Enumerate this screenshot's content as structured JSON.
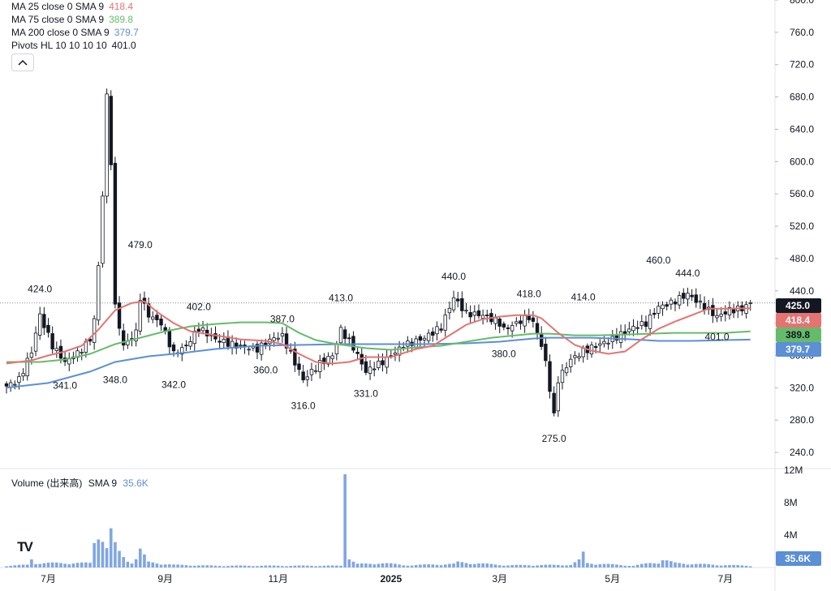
{
  "legend": {
    "ma25": {
      "label": "MA 25 close 0 SMA 9",
      "value": "418.4",
      "color": "#e57373"
    },
    "ma75": {
      "label": "MA 75 close 0 SMA 9",
      "value": "389.8",
      "color": "#66bb6a"
    },
    "ma200": {
      "label": "MA 200 close 0 SMA 9",
      "value": "379.7",
      "color": "#5b8fd6"
    },
    "pivots": {
      "label": "Pivots HL 10 10 10 10",
      "value": "401.0"
    }
  },
  "volume_legend": {
    "label": "Volume (出来高)",
    "sma": "SMA 9",
    "value": "35.6K"
  },
  "logo_text": "TV",
  "chart_data": {
    "type": "candlestick",
    "price_axis": {
      "ticks": [
        "800.0",
        "760.0",
        "720.0",
        "680.0",
        "640.0",
        "600.0",
        "560.0",
        "520.0",
        "480.0",
        "440.0",
        "400.0",
        "360.0",
        "320.0",
        "280.0",
        "240.0"
      ],
      "range": [
        220,
        800
      ]
    },
    "volume_axis": {
      "ticks": [
        "12M",
        "8M",
        "4M"
      ],
      "range": [
        0,
        12000000
      ]
    },
    "time_axis": [
      "7月",
      "9月",
      "11月",
      "2025",
      "3月",
      "5月",
      "7月"
    ],
    "price_badges": [
      {
        "value": "425.0",
        "color": "#131722",
        "price": 425
      },
      {
        "value": "418.4",
        "color": "#e57373",
        "price": 418.4
      },
      {
        "value": "389.8",
        "color": "#66bb6a",
        "price": 389.8
      },
      {
        "value": "379.7",
        "color": "#5b8fd6",
        "price": 379.7
      }
    ],
    "volume_badge": {
      "value": "35.6K",
      "color": "#5b8fd6"
    },
    "last_price": 425,
    "pivot_labels": [
      {
        "text": "424.0",
        "kind": "high",
        "index": 8,
        "price": 424
      },
      {
        "text": "341.0",
        "kind": "low",
        "index": 14,
        "price": 341
      },
      {
        "text": "479.0",
        "kind": "high",
        "index": 32,
        "price": 479
      },
      {
        "text": "348.0",
        "kind": "low",
        "index": 26,
        "price": 348
      },
      {
        "text": "402.0",
        "kind": "high",
        "index": 46,
        "price": 402
      },
      {
        "text": "342.0",
        "kind": "low",
        "index": 40,
        "price": 342
      },
      {
        "text": "387.0",
        "kind": "high",
        "index": 66,
        "price": 387
      },
      {
        "text": "360.0",
        "kind": "low",
        "index": 62,
        "price": 360
      },
      {
        "text": "316.0",
        "kind": "low",
        "index": 71,
        "price": 316
      },
      {
        "text": "413.0",
        "kind": "high",
        "index": 80,
        "price": 413
      },
      {
        "text": "331.0",
        "kind": "low",
        "index": 86,
        "price": 331
      },
      {
        "text": "440.0",
        "kind": "high",
        "index": 107,
        "price": 440
      },
      {
        "text": "418.0",
        "kind": "high",
        "index": 125,
        "price": 418
      },
      {
        "text": "380.0",
        "kind": "low",
        "index": 119,
        "price": 380
      },
      {
        "text": "275.0",
        "kind": "low",
        "index": 131,
        "price": 275
      },
      {
        "text": "414.0",
        "kind": "high",
        "index": 138,
        "price": 414
      },
      {
        "text": "460.0",
        "kind": "high",
        "index": 156,
        "price": 460
      },
      {
        "text": "444.0",
        "kind": "high",
        "index": 163,
        "price": 444
      },
      {
        "text": "401.0",
        "kind": "low",
        "index": 170,
        "price": 401
      }
    ],
    "anchors": [
      [
        0,
        322
      ],
      [
        3,
        330
      ],
      [
        6,
        365
      ],
      [
        8,
        410
      ],
      [
        11,
        372
      ],
      [
        14,
        352
      ],
      [
        17,
        362
      ],
      [
        20,
        380
      ],
      [
        21,
        405
      ],
      [
        22,
        470
      ],
      [
        23,
        560
      ],
      [
        24,
        680
      ],
      [
        25,
        600
      ],
      [
        26,
        420
      ],
      [
        28,
        372
      ],
      [
        31,
        388
      ],
      [
        32,
        432
      ],
      [
        34,
        410
      ],
      [
        37,
        400
      ],
      [
        40,
        362
      ],
      [
        43,
        372
      ],
      [
        46,
        394
      ],
      [
        50,
        380
      ],
      [
        55,
        372
      ],
      [
        60,
        368
      ],
      [
        64,
        382
      ],
      [
        66,
        384
      ],
      [
        68,
        362
      ],
      [
        71,
        330
      ],
      [
        75,
        350
      ],
      [
        78,
        360
      ],
      [
        80,
        392
      ],
      [
        83,
        370
      ],
      [
        86,
        340
      ],
      [
        90,
        352
      ],
      [
        95,
        372
      ],
      [
        100,
        382
      ],
      [
        104,
        395
      ],
      [
        107,
        432
      ],
      [
        110,
        412
      ],
      [
        114,
        410
      ],
      [
        118,
        400
      ],
      [
        119,
        392
      ],
      [
        122,
        400
      ],
      [
        125,
        408
      ],
      [
        127,
        390
      ],
      [
        129,
        352
      ],
      [
        131,
        285
      ],
      [
        132,
        330
      ],
      [
        135,
        355
      ],
      [
        138,
        365
      ],
      [
        141,
        372
      ],
      [
        145,
        380
      ],
      [
        150,
        395
      ],
      [
        153,
        400
      ],
      [
        156,
        420
      ],
      [
        159,
        425
      ],
      [
        163,
        436
      ],
      [
        167,
        420
      ],
      [
        170,
        408
      ],
      [
        173,
        416
      ],
      [
        176,
        418
      ],
      [
        178,
        425
      ]
    ],
    "ma25_points": [
      [
        0,
        350
      ],
      [
        6,
        354
      ],
      [
        10,
        360
      ],
      [
        14,
        365
      ],
      [
        18,
        372
      ],
      [
        22,
        392
      ],
      [
        26,
        416
      ],
      [
        30,
        425
      ],
      [
        33,
        427
      ],
      [
        36,
        414
      ],
      [
        40,
        400
      ],
      [
        44,
        390
      ],
      [
        50,
        385
      ],
      [
        56,
        380
      ],
      [
        62,
        378
      ],
      [
        66,
        374
      ],
      [
        70,
        362
      ],
      [
        74,
        352
      ],
      [
        78,
        350
      ],
      [
        82,
        352
      ],
      [
        86,
        358
      ],
      [
        92,
        358
      ],
      [
        98,
        368
      ],
      [
        102,
        372
      ],
      [
        106,
        385
      ],
      [
        110,
        398
      ],
      [
        114,
        405
      ],
      [
        118,
        408
      ],
      [
        122,
        410
      ],
      [
        126,
        410
      ],
      [
        128,
        406
      ],
      [
        132,
        388
      ],
      [
        136,
        373
      ],
      [
        140,
        366
      ],
      [
        144,
        362
      ],
      [
        148,
        365
      ],
      [
        152,
        380
      ],
      [
        156,
        393
      ],
      [
        160,
        402
      ],
      [
        164,
        410
      ],
      [
        168,
        418
      ],
      [
        172,
        418
      ],
      [
        178,
        418.4
      ]
    ],
    "ma75_points": [
      [
        0,
        352
      ],
      [
        8,
        352
      ],
      [
        14,
        355
      ],
      [
        20,
        362
      ],
      [
        26,
        374
      ],
      [
        32,
        382
      ],
      [
        38,
        390
      ],
      [
        44,
        396
      ],
      [
        50,
        399
      ],
      [
        56,
        401
      ],
      [
        62,
        401
      ],
      [
        66,
        400
      ],
      [
        70,
        388
      ],
      [
        74,
        379
      ],
      [
        78,
        375
      ],
      [
        82,
        372
      ],
      [
        86,
        369
      ],
      [
        92,
        367
      ],
      [
        98,
        370
      ],
      [
        104,
        372
      ],
      [
        110,
        377
      ],
      [
        116,
        382
      ],
      [
        122,
        385
      ],
      [
        126,
        387
      ],
      [
        130,
        387
      ],
      [
        136,
        385
      ],
      [
        142,
        385
      ],
      [
        148,
        386
      ],
      [
        154,
        387
      ],
      [
        160,
        388
      ],
      [
        166,
        388
      ],
      [
        172,
        388
      ],
      [
        178,
        389.8
      ]
    ],
    "ma200_points": [
      [
        0,
        320
      ],
      [
        10,
        326
      ],
      [
        20,
        340
      ],
      [
        26,
        352
      ],
      [
        34,
        359
      ],
      [
        42,
        363
      ],
      [
        50,
        368
      ],
      [
        60,
        372
      ],
      [
        70,
        373
      ],
      [
        80,
        374
      ],
      [
        90,
        374
      ],
      [
        100,
        374
      ],
      [
        110,
        375
      ],
      [
        118,
        377
      ],
      [
        122,
        379
      ],
      [
        126,
        381
      ],
      [
        130,
        382
      ],
      [
        140,
        382
      ],
      [
        150,
        380
      ],
      [
        156,
        378
      ],
      [
        164,
        378
      ],
      [
        172,
        379
      ],
      [
        178,
        379.7
      ]
    ],
    "volume_profile": [
      [
        0,
        0.2
      ],
      [
        5,
        0.3
      ],
      [
        6,
        1.1
      ],
      [
        7,
        0.5
      ],
      [
        20,
        0.5
      ],
      [
        21,
        3.0
      ],
      [
        22,
        4.3
      ],
      [
        23,
        3.5
      ],
      [
        24,
        2.2
      ],
      [
        25,
        4.0
      ],
      [
        26,
        2.5
      ],
      [
        27,
        1.7
      ],
      [
        28,
        1.2
      ],
      [
        29,
        0.8
      ],
      [
        30,
        0.6
      ],
      [
        31,
        1.0
      ],
      [
        32,
        2.0
      ],
      [
        33,
        1.3
      ],
      [
        34,
        0.6
      ],
      [
        36,
        0.5
      ],
      [
        40,
        0.3
      ],
      [
        50,
        0.2
      ],
      [
        60,
        0.2
      ],
      [
        80,
        0.2
      ],
      [
        81,
        11.5
      ],
      [
        82,
        1.2
      ],
      [
        83,
        0.7
      ],
      [
        84,
        0.4
      ],
      [
        88,
        0.4
      ],
      [
        89,
        0.6
      ],
      [
        95,
        0.25
      ],
      [
        107,
        0.4
      ],
      [
        108,
        0.6
      ],
      [
        120,
        0.25
      ],
      [
        135,
        0.3
      ],
      [
        137,
        0.8
      ],
      [
        138,
        1.6
      ],
      [
        139,
        0.5
      ],
      [
        150,
        0.2
      ],
      [
        154,
        0.5
      ],
      [
        156,
        0.6
      ],
      [
        157,
        0.9
      ],
      [
        160,
        0.5
      ],
      [
        170,
        0.3
      ],
      [
        178,
        0.2
      ]
    ]
  }
}
